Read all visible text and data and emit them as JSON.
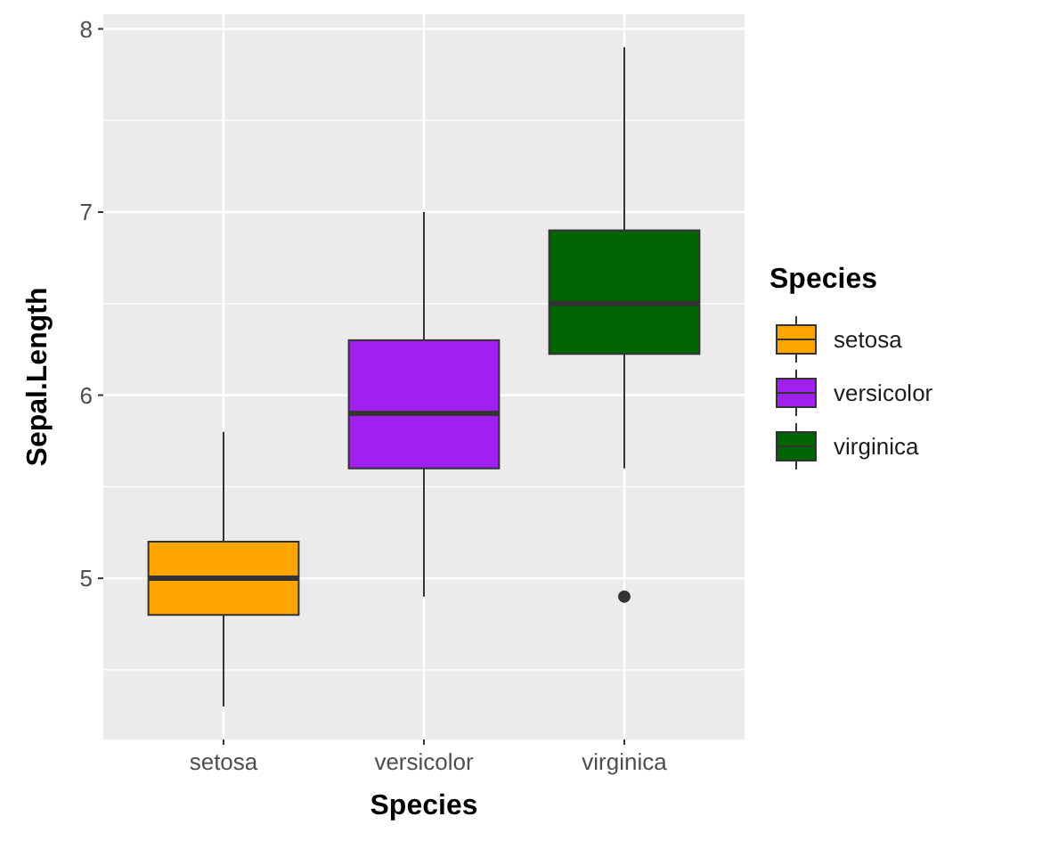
{
  "chart_data": {
    "type": "box",
    "categories": [
      "setosa",
      "versicolor",
      "virginica"
    ],
    "series": [
      {
        "name": "setosa",
        "color": "#ffa500",
        "boxes": [
          {
            "low": 4.3,
            "q1": 4.8,
            "median": 5.0,
            "q3": 5.2,
            "high": 5.8
          },
          null,
          null
        ]
      },
      {
        "name": "versicolor",
        "color": "#a020f0",
        "boxes": [
          null,
          {
            "low": 4.9,
            "q1": 5.6,
            "median": 5.9,
            "q3": 6.3,
            "high": 7.0
          },
          null
        ]
      },
      {
        "name": "virginica",
        "color": "#006400",
        "boxes": [
          null,
          null,
          {
            "low": 5.6,
            "q1": 6.225,
            "median": 6.5,
            "q3": 6.9,
            "high": 7.9,
            "outliers": [
              4.9
            ]
          }
        ]
      }
    ],
    "xlabel": "Species",
    "ylabel": "Sepal.Length",
    "legend_title": "Species",
    "legend": "right",
    "ylim": [
      4.12,
      8.08
    ],
    "yticks": [
      5,
      6,
      7,
      8
    ],
    "grid": true
  }
}
